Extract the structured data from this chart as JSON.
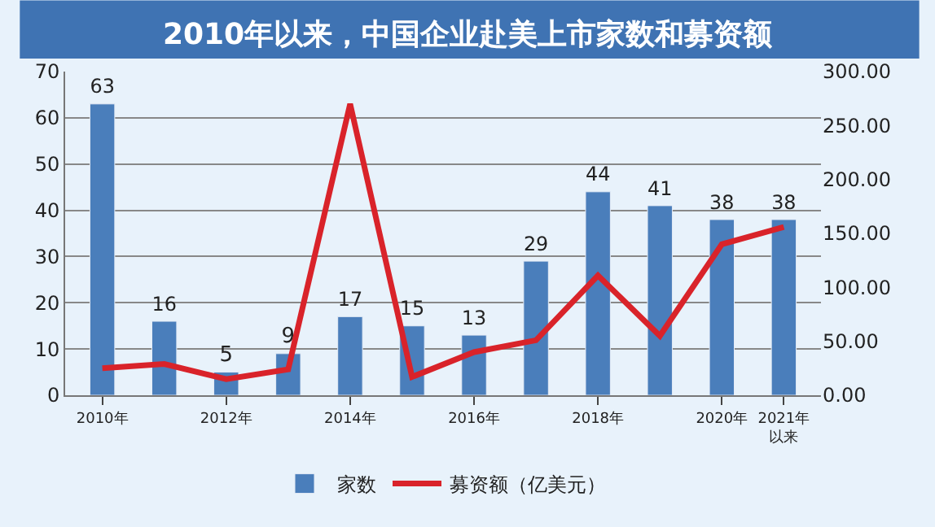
{
  "chart_data": {
    "type": "bar",
    "title": "2010年以来，中国企业赴美上市家数和募资额",
    "categories": [
      "2010年",
      null,
      "2012年",
      null,
      "2014年",
      null,
      "2016年",
      null,
      "2018年",
      null,
      "2020年",
      "2021年以来"
    ],
    "series": [
      {
        "name": "家数",
        "color": "#4a7ebb",
        "values": [
          63,
          16,
          5,
          9,
          17,
          15,
          13,
          29,
          44,
          41,
          38,
          38
        ],
        "value_labels": [
          "63",
          "16",
          "5",
          "9",
          "17",
          "15",
          "13",
          "29",
          "44",
          "41",
          "38",
          "38"
        ]
      },
      {
        "name": "募资额（亿美元）",
        "type": "line",
        "axis": "y2",
        "color": "#d9232a",
        "values": [
          25,
          29,
          15,
          24,
          270,
          17,
          40,
          51,
          111,
          55,
          140,
          156
        ]
      }
    ],
    "ylim": [
      0,
      70
    ],
    "yticks": [
      0,
      10,
      20,
      30,
      40,
      50,
      60,
      70
    ],
    "y2lim": [
      0,
      300
    ],
    "y2ticks": [
      {
        "value": 0,
        "label": "0.00"
      },
      {
        "value": 50,
        "label": "50.00"
      },
      {
        "value": 100,
        "label": "100.00"
      },
      {
        "value": 150,
        "label": "150.00"
      },
      {
        "value": 200,
        "label": "200.00"
      },
      {
        "value": 250,
        "label": "250.00"
      },
      {
        "value": 300,
        "label": "300.00"
      }
    ],
    "grid": "y",
    "legend": "bottom",
    "marker": "none",
    "line_style": "solid"
  }
}
